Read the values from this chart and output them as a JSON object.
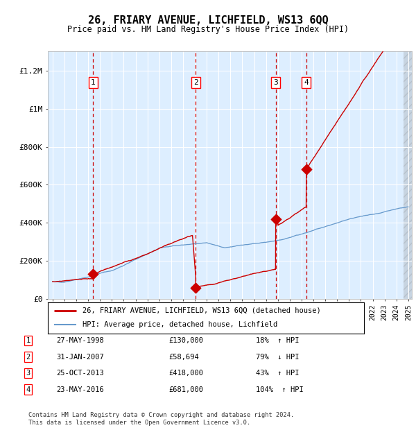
{
  "title": "26, FRIARY AVENUE, LICHFIELD, WS13 6QQ",
  "subtitle": "Price paid vs. HM Land Registry's House Price Index (HPI)",
  "house_color": "#cc0000",
  "hpi_color": "#6699cc",
  "bg_color": "#ddeeff",
  "transactions": [
    {
      "num": 1,
      "date": "27-MAY-1998",
      "year": 1998.42,
      "price": 130000,
      "pct": "18%",
      "dir": "↑"
    },
    {
      "num": 2,
      "date": "31-JAN-2007",
      "year": 2007.08,
      "price": 58694,
      "pct": "79%",
      "dir": "↓"
    },
    {
      "num": 3,
      "date": "25-OCT-2013",
      "year": 2013.81,
      "price": 418000,
      "pct": "43%",
      "dir": "↑"
    },
    {
      "num": 4,
      "date": "23-MAY-2016",
      "year": 2016.4,
      "price": 681000,
      "pct": "104%",
      "dir": "↑"
    }
  ],
  "ylim": [
    0,
    1300000
  ],
  "xlim_lo": 1994.6,
  "xlim_hi": 2025.3,
  "legend_house": "26, FRIARY AVENUE, LICHFIELD, WS13 6QQ (detached house)",
  "legend_hpi": "HPI: Average price, detached house, Lichfield",
  "footer1": "Contains HM Land Registry data © Crown copyright and database right 2024.",
  "footer2": "This data is licensed under the Open Government Licence v3.0.",
  "yticks": [
    0,
    200000,
    400000,
    600000,
    800000,
    1000000,
    1200000
  ],
  "ylabels": [
    "£0",
    "£200K",
    "£400K",
    "£600K",
    "£800K",
    "£1M",
    "£1.2M"
  ]
}
